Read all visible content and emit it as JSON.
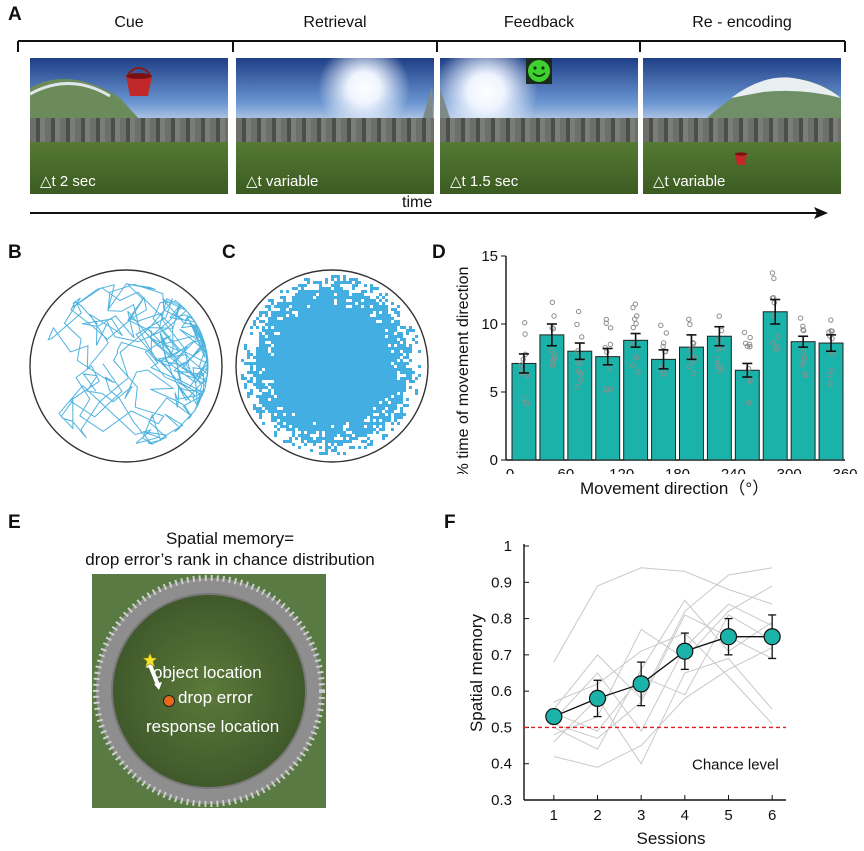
{
  "panel_a": {
    "label": "A",
    "phases": [
      {
        "label": "Cue",
        "dt": "△t  2 sec"
      },
      {
        "label": "Retrieval",
        "dt": "△t  variable"
      },
      {
        "label": "Feedback",
        "dt": "△t  1.5 sec"
      },
      {
        "label": "Re - encoding",
        "dt": "△t  variable"
      }
    ],
    "time_label": "time"
  },
  "panel_b": {
    "label": "B"
  },
  "panel_c": {
    "label": "C"
  },
  "panel_e": {
    "label": "E",
    "caption_line1": "Spatial memory=",
    "caption_line2": "drop error’s rank in chance distribution",
    "object_label": "object location",
    "error_label": "drop error",
    "response_label": "response location"
  },
  "chart_data": [
    {
      "panel": "D",
      "type": "bar",
      "label": "D",
      "xlabel": "Movement direction（°）",
      "ylabel": "% time of movement direction",
      "x_ticks": [
        "0",
        "60",
        "120",
        "180",
        "240",
        "300",
        "360"
      ],
      "y_ticks": [
        "0",
        "5",
        "10",
        "15"
      ],
      "ylim": [
        0,
        15
      ],
      "xlim": [
        0,
        360
      ],
      "bar_centers": [
        15,
        45,
        75,
        105,
        135,
        165,
        195,
        225,
        255,
        285,
        315,
        345
      ],
      "values": [
        7.1,
        9.2,
        8.0,
        7.6,
        8.8,
        7.4,
        8.3,
        9.1,
        6.6,
        10.9,
        8.7,
        8.6
      ],
      "errors": [
        0.7,
        0.8,
        0.6,
        0.6,
        0.5,
        0.7,
        0.9,
        0.7,
        0.5,
        0.9,
        0.4,
        0.6
      ],
      "bar_color": "#1bb3a9",
      "point_color": "#8d8d8d"
    },
    {
      "panel": "F",
      "type": "line",
      "label": "F",
      "xlabel": "Sessions",
      "ylabel": "Spatial memory",
      "x": [
        1,
        2,
        3,
        4,
        5,
        6
      ],
      "x_ticks": [
        "1",
        "2",
        "3",
        "4",
        "5",
        "6"
      ],
      "y_ticks": [
        "0.3",
        "0.4",
        "0.5",
        "0.6",
        "0.7",
        "0.8",
        "0.9",
        "1"
      ],
      "ylim": [
        0.3,
        1.0
      ],
      "mean": [
        0.53,
        0.58,
        0.62,
        0.71,
        0.75,
        0.75
      ],
      "errors": [
        0.02,
        0.05,
        0.06,
        0.05,
        0.05,
        0.06
      ],
      "chance_level": 0.5,
      "chance_label": "Chance level",
      "marker_color": "#1bb3a9",
      "chance_color": "#e02020",
      "individuals": [
        [
          0.68,
          0.89,
          0.94,
          0.93,
          0.88,
          0.84
        ],
        [
          0.55,
          0.7,
          0.58,
          0.82,
          0.92,
          0.94
        ],
        [
          0.48,
          0.53,
          0.77,
          0.69,
          0.82,
          0.89
        ],
        [
          0.5,
          0.44,
          0.66,
          0.85,
          0.71,
          0.79
        ],
        [
          0.52,
          0.65,
          0.49,
          0.72,
          0.84,
          0.78
        ],
        [
          0.46,
          0.58,
          0.4,
          0.65,
          0.69,
          0.55
        ],
        [
          0.54,
          0.49,
          0.64,
          0.59,
          0.81,
          0.74
        ],
        [
          0.42,
          0.39,
          0.45,
          0.58,
          0.66,
          0.72
        ],
        [
          0.57,
          0.62,
          0.71,
          0.76,
          0.64,
          0.51
        ],
        [
          0.51,
          0.47,
          0.57,
          0.81,
          0.75,
          0.69
        ]
      ]
    }
  ]
}
